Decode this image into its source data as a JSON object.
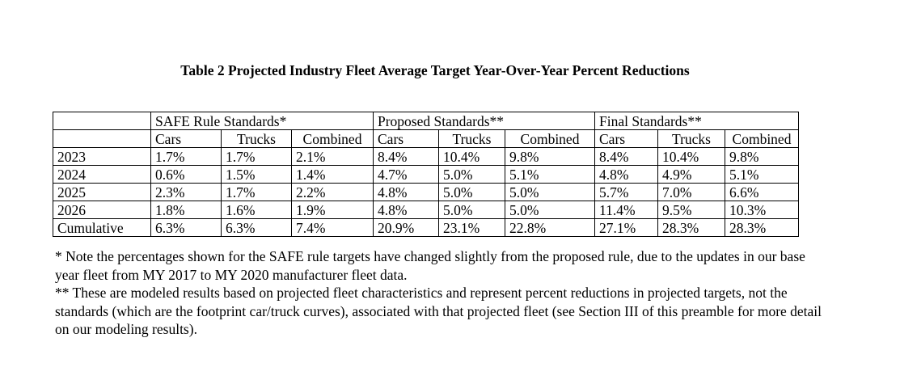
{
  "caption": "Table 2 Projected Industry Fleet Average Target Year-Over-Year Percent Reductions",
  "table": {
    "groups": [
      "SAFE Rule Standards*",
      "Proposed Standards**",
      "Final Standards**"
    ],
    "subheaders": [
      "Cars",
      "Trucks",
      "Combined",
      "Cars",
      "Trucks",
      "Combined",
      "Cars",
      "Trucks",
      "Combined"
    ],
    "rows": [
      {
        "label": "2023",
        "values": [
          "1.7%",
          "1.7%",
          "2.1%",
          "8.4%",
          "10.4%",
          "9.8%",
          "8.4%",
          "10.4%",
          "9.8%"
        ]
      },
      {
        "label": "2024",
        "values": [
          "0.6%",
          "1.5%",
          "1.4%",
          "4.7%",
          "5.0%",
          "5.1%",
          "4.8%",
          "4.9%",
          "5.1%"
        ]
      },
      {
        "label": "2025",
        "values": [
          "2.3%",
          "1.7%",
          "2.2%",
          "4.8%",
          "5.0%",
          "5.0%",
          "5.7%",
          "7.0%",
          "6.6%"
        ]
      },
      {
        "label": "2026",
        "values": [
          "1.8%",
          "1.6%",
          "1.9%",
          "4.8%",
          "5.0%",
          "5.0%",
          "11.4%",
          "9.5%",
          "10.3%"
        ]
      },
      {
        "label": "Cumulative",
        "values": [
          "6.3%",
          "6.3%",
          "7.4%",
          "20.9%",
          "23.1%",
          "22.8%",
          "27.1%",
          "28.3%",
          "28.3%"
        ]
      }
    ]
  },
  "notes": [
    "* Note the percentages shown for the SAFE rule targets have changed slightly from the proposed rule, due to the updates in our base year fleet from MY 2017 to MY 2020 manufacturer fleet data.",
    "** These are modeled results based on projected fleet characteristics and represent percent reductions in projected targets, not the standards (which are the footprint car/truck curves), associated with that projected fleet (see Section III of this preamble for more detail on our modeling results)."
  ]
}
